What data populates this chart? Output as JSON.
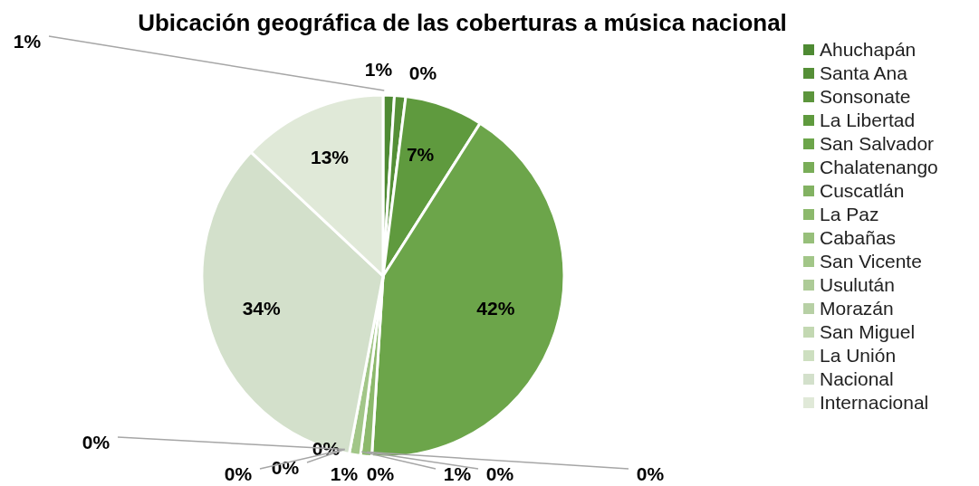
{
  "chart_data": {
    "type": "pie",
    "title": "Ubicación geográfica de las coberturas a música nacional",
    "categories": [
      "Ahuchapán",
      "Santa Ana",
      "Sonsonate",
      "La Libertad",
      "San Salvador",
      "Chalatenango",
      "Cuscatlán",
      "La Paz",
      "Cabañas",
      "San Vicente",
      "Usulután",
      "Morazán",
      "San Miguel",
      "La Unión",
      "Nacional",
      "Internacional"
    ],
    "values": [
      1,
      1,
      0,
      7,
      42,
      0,
      0,
      1,
      0,
      1,
      0,
      0,
      0,
      0,
      34,
      13
    ],
    "value_labels": [
      "1%",
      "1%",
      "0%",
      "7%",
      "42%",
      "0%",
      "0%",
      "1%",
      "0%",
      "1%",
      "0%",
      "0%",
      "0%",
      "0%",
      "34%",
      "13%"
    ],
    "colors": [
      "#4e8a33",
      "#558f37",
      "#5c953c",
      "#5f9a3e",
      "#6ca54a",
      "#79ad58",
      "#82b262",
      "#8cb96c",
      "#97bf7a",
      "#a2c688",
      "#adcb97",
      "#b7d0a5",
      "#c3d8b2",
      "#cddfc0",
      "#d3e0cb",
      "#e0e9d8"
    ],
    "legend": "right"
  }
}
